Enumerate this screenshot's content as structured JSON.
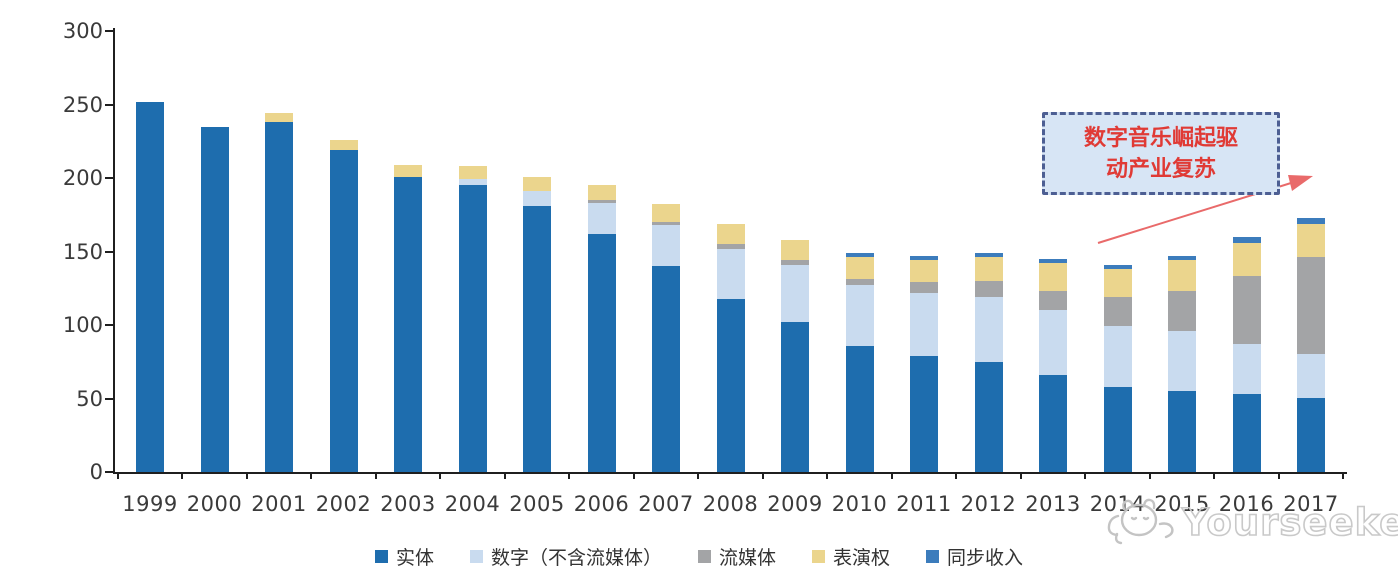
{
  "chart_data": {
    "type": "bar",
    "stacked": true,
    "title": "",
    "xlabel": "",
    "ylabel": "",
    "categories": [
      "1999",
      "2000",
      "2001",
      "2002",
      "2003",
      "2004",
      "2005",
      "2006",
      "2007",
      "2008",
      "2009",
      "2010",
      "2011",
      "2012",
      "2013",
      "2014",
      "2015",
      "2016",
      "2017"
    ],
    "series": [
      {
        "name": "实体",
        "color": "#1E6DAE",
        "values": [
          252,
          235,
          238,
          219,
          201,
          195,
          181,
          162,
          140,
          118,
          102,
          86,
          79,
          75,
          66,
          58,
          55,
          53,
          50
        ]
      },
      {
        "name": "数字（不含流媒体）",
        "color": "#C9DBEF",
        "values": [
          0,
          0,
          0,
          0,
          0,
          4,
          10,
          21,
          28,
          34,
          39,
          41,
          43,
          44,
          44,
          41,
          41,
          34,
          30
        ]
      },
      {
        "name": "流媒体",
        "color": "#A3A4A6",
        "values": [
          0,
          0,
          0,
          0,
          0,
          0,
          0,
          2,
          2,
          3,
          3,
          4,
          7,
          11,
          13,
          20,
          27,
          46,
          66
        ]
      },
      {
        "name": "表演权",
        "color": "#EBD58D",
        "values": [
          0,
          0,
          6,
          7,
          8,
          9,
          10,
          10,
          12,
          14,
          14,
          15,
          15,
          16,
          19,
          19,
          21,
          23,
          23
        ]
      },
      {
        "name": "同步收入",
        "color": "#3C7CBC",
        "values": [
          0,
          0,
          0,
          0,
          0,
          0,
          0,
          0,
          0,
          0,
          0,
          3,
          3,
          3,
          3,
          3,
          3,
          4,
          4
        ]
      }
    ],
    "ylim": [
      0,
      300
    ],
    "yticks": [
      0,
      50,
      100,
      150,
      200,
      250,
      300
    ],
    "grid": false,
    "legend_position": "bottom"
  },
  "annotation": {
    "line1": "数字音乐崛起驱",
    "line2": "动产业复苏",
    "text_color": "#E03A35",
    "box_fill": "#D7E5F5",
    "box_border": "#4D5F93",
    "arrow_color": "#E96A6A"
  },
  "watermark": {
    "text": "Yourseeker",
    "logo": "yourseeker-cat-doodle-icon",
    "color": "#C9C9C9"
  }
}
